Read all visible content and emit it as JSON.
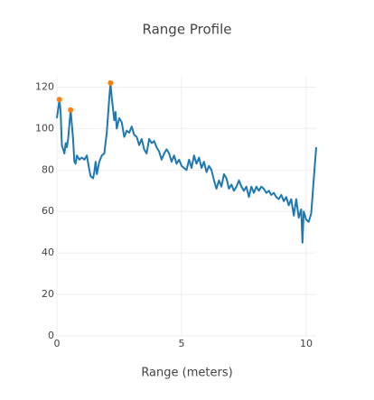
{
  "chart_data": {
    "type": "line",
    "title": "Range Profile",
    "x_label": "Range (meters)",
    "xlim": [
      0,
      10.4
    ],
    "xticks": [
      0,
      5,
      10
    ],
    "ylim": [
      0,
      125
    ],
    "yticks": [
      0,
      20,
      40,
      60,
      80,
      100,
      120
    ],
    "grid": true,
    "series": [
      {
        "mode": "lines",
        "color": "#1f77b4",
        "x": [
          0,
          0.1,
          0.15,
          0.2,
          0.3,
          0.35,
          0.4,
          0.45,
          0.55,
          0.65,
          0.7,
          0.75,
          0.8,
          0.9,
          1.0,
          1.1,
          1.2,
          1.3,
          1.35,
          1.45,
          1.5,
          1.55,
          1.6,
          1.7,
          1.8,
          1.9,
          2.0,
          2.1,
          2.15,
          2.2,
          2.3,
          2.35,
          2.4,
          2.5,
          2.6,
          2.7,
          2.8,
          2.9,
          3.0,
          3.1,
          3.2,
          3.3,
          3.4,
          3.5,
          3.6,
          3.7,
          3.8,
          3.9,
          4.0,
          4.1,
          4.2,
          4.3,
          4.4,
          4.5,
          4.6,
          4.7,
          4.8,
          4.9,
          5.0,
          5.1,
          5.2,
          5.3,
          5.4,
          5.5,
          5.6,
          5.7,
          5.8,
          5.9,
          6.0,
          6.1,
          6.2,
          6.3,
          6.4,
          6.5,
          6.6,
          6.7,
          6.8,
          6.9,
          7.0,
          7.1,
          7.2,
          7.3,
          7.4,
          7.5,
          7.6,
          7.7,
          7.8,
          7.9,
          8.0,
          8.1,
          8.2,
          8.3,
          8.4,
          8.5,
          8.6,
          8.7,
          8.8,
          8.9,
          9.0,
          9.1,
          9.2,
          9.3,
          9.4,
          9.5,
          9.6,
          9.7,
          9.8,
          9.85,
          9.9,
          10.0,
          10.1,
          10.2,
          10.3,
          10.4
        ],
        "values": [
          105,
          114,
          108,
          92,
          88,
          93,
          91,
          95,
          109,
          95,
          84,
          83,
          87,
          85,
          86,
          85,
          87,
          80,
          77,
          76,
          79,
          84,
          78,
          84,
          87,
          88,
          98,
          115,
          122,
          115,
          104,
          108,
          100,
          105,
          103,
          96,
          99,
          98,
          101,
          97,
          96,
          92,
          95,
          90,
          88,
          95,
          93,
          94,
          91,
          89,
          85,
          88,
          90,
          88,
          84,
          87,
          83,
          85,
          82,
          81,
          80,
          85,
          81,
          87,
          83,
          86,
          81,
          84,
          79,
          82,
          80,
          75,
          71,
          75,
          72,
          78,
          76,
          71,
          73,
          70,
          72,
          75,
          72,
          70,
          72,
          67,
          72,
          69,
          72,
          70,
          72,
          71,
          69,
          70,
          68,
          69,
          67,
          66,
          68,
          65,
          67,
          63,
          66,
          58,
          66,
          57,
          61,
          45,
          60,
          56,
          55,
          59,
          75,
          91
        ]
      },
      {
        "mode": "markers",
        "color": "#ff7f0e",
        "x": [
          0.1,
          0.55,
          2.15
        ],
        "values": [
          114,
          109,
          122
        ]
      }
    ]
  }
}
